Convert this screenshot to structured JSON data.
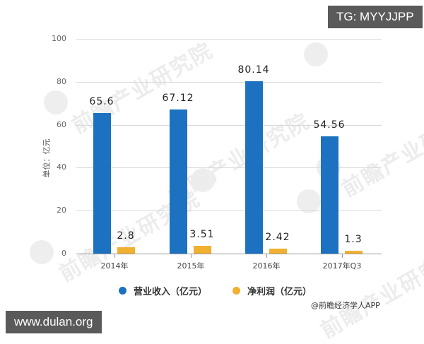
{
  "overlay": {
    "top_right_tag": "TG: MYYJJPP",
    "bottom_left_tag": "www.dulan.org",
    "watermark_text": "前瞻产业研究院"
  },
  "chart_data": {
    "type": "bar",
    "title": "",
    "xlabel": "",
    "ylabel": "单位：亿元",
    "ylim": [
      0,
      100
    ],
    "yticks": [
      "0",
      "20",
      "40",
      "60",
      "80",
      "100"
    ],
    "grid": true,
    "legend_position": "bottom",
    "categories": [
      "2014年",
      "2015年",
      "2016年",
      "2017年Q3"
    ],
    "series": [
      {
        "name": "营业收入（亿元）",
        "color": "#1c72c0",
        "values": [
          65.6,
          67.12,
          80.14,
          54.56
        ],
        "labels": [
          "65.6",
          "67.12",
          "80.14",
          "54.56"
        ]
      },
      {
        "name": "净利润（亿元）",
        "color": "#f0b030",
        "values": [
          2.8,
          3.51,
          2.42,
          1.3
        ],
        "labels": [
          "2.8",
          "3.51",
          "2.42",
          "1.3"
        ]
      }
    ],
    "source": "@前瞻经济学人APP"
  }
}
